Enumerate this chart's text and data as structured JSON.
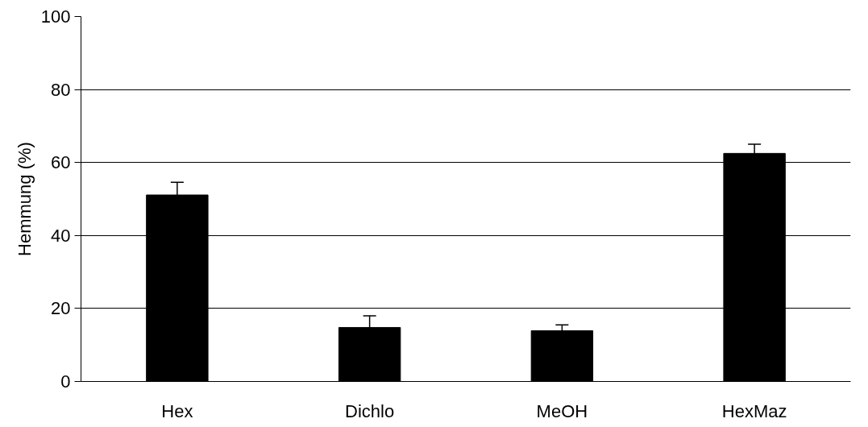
{
  "chart_data": {
    "type": "bar",
    "ylabel": "Hemmung (%)",
    "categories": [
      "Hex",
      "Dichlo",
      "MeOH",
      "HexMaz"
    ],
    "values": [
      51.1,
      14.8,
      13.9,
      62.5
    ],
    "errors": [
      3.5,
      3.2,
      1.6,
      2.5
    ],
    "color": "#000000",
    "ylim": [
      0,
      100
    ],
    "yticks": [
      0,
      20,
      40,
      60,
      80,
      100
    ],
    "grid": "y"
  }
}
